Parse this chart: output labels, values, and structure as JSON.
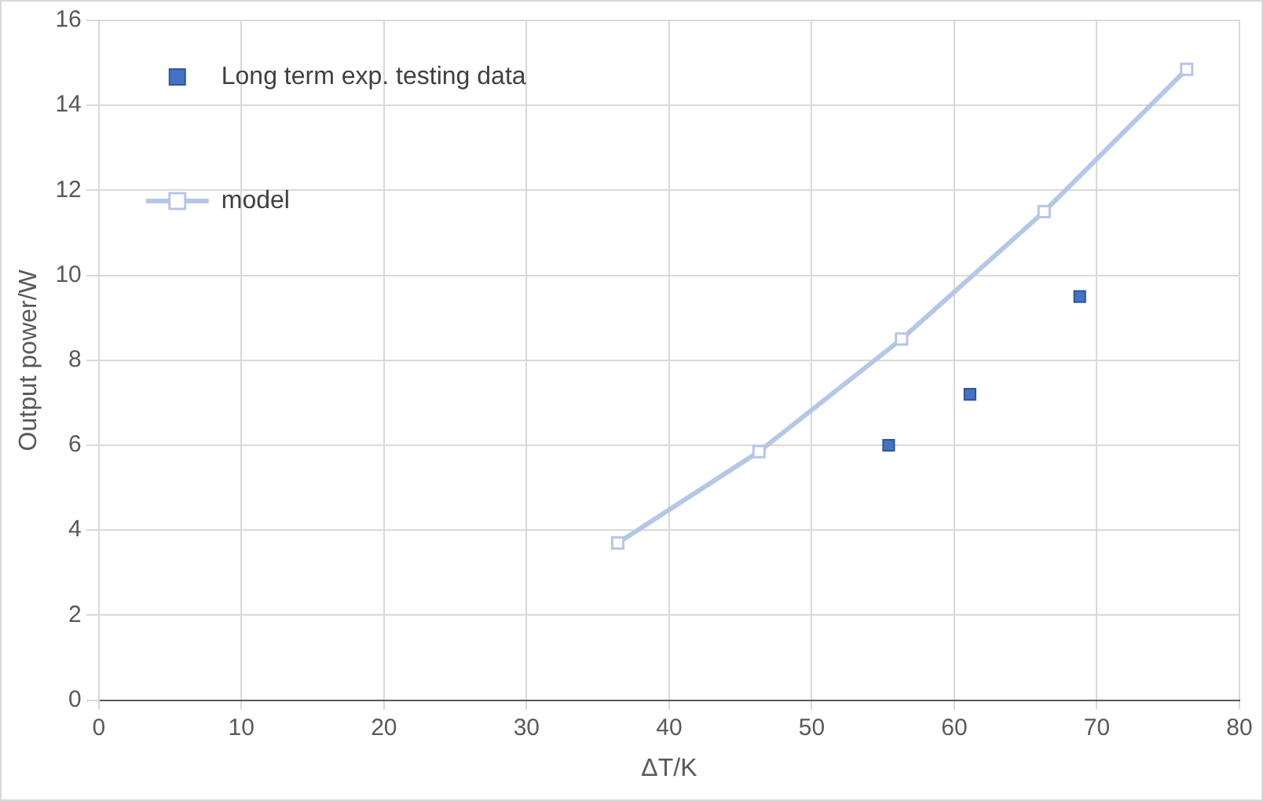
{
  "chart_data": {
    "type": "scatter",
    "xlabel": "ΔT/K",
    "ylabel": "Output power/W",
    "series": [
      {
        "name": "Long term exp. testing data",
        "color": "#4472c4",
        "marker": "square",
        "x": [
          55.4,
          61.1,
          68.8
        ],
        "values": [
          6.0,
          7.2,
          9.5
        ]
      },
      {
        "name": "model",
        "type": "line",
        "color": "#b4c7e7",
        "marker": "square",
        "line_style": "solid",
        "x": [
          36.4,
          46.3,
          56.3,
          66.3,
          76.3
        ],
        "values": [
          3.7,
          5.85,
          8.5,
          11.5,
          14.85
        ]
      }
    ],
    "xlim": [
      0,
      80
    ],
    "xticks": [
      0,
      10,
      20,
      30,
      40,
      50,
      60,
      70,
      80
    ],
    "ylim": [
      0,
      16
    ],
    "yticks": [
      0,
      2,
      4,
      6,
      8,
      10,
      12,
      14,
      16
    ],
    "grid": true,
    "legend": "top left"
  }
}
